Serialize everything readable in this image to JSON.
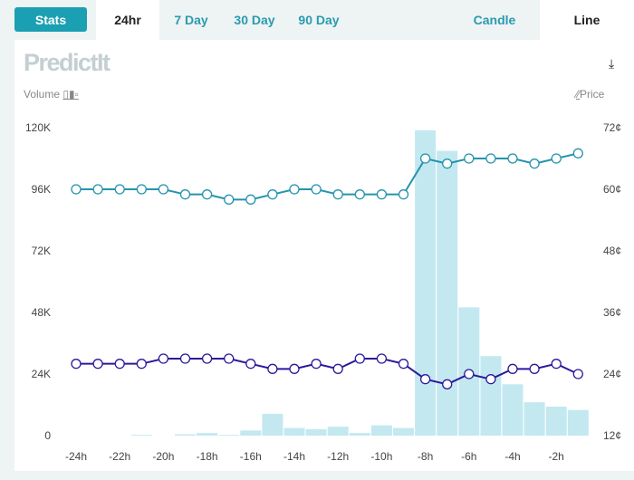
{
  "header": {
    "stats_label": "Stats",
    "tabs": [
      {
        "label": "24hr",
        "active": true
      },
      {
        "label": "7 Day"
      },
      {
        "label": "30 Day"
      },
      {
        "label": "90 Day"
      }
    ],
    "view_tabs": [
      {
        "label": "Candle"
      },
      {
        "label": "Line",
        "active": true
      }
    ]
  },
  "logo": "PredictIt",
  "legend": {
    "volume": "Volume",
    "price": "Price"
  },
  "colors": {
    "accent": "#1b9fb2",
    "series1": "#2593ad",
    "series2": "#2a1a9a",
    "bars": "#c3e8f0"
  },
  "chart_data": {
    "type": "line",
    "x": [
      "-24h",
      "-23h",
      "-22h",
      "-21h",
      "-20h",
      "-19h",
      "-18h",
      "-17h",
      "-16h",
      "-15h",
      "-14h",
      "-13h",
      "-12h",
      "-11h",
      "-10h",
      "-9h",
      "-8h",
      "-7h",
      "-6h",
      "-5h",
      "-4h",
      "-3h",
      "-2h",
      "-1h"
    ],
    "x_tick_labels": [
      "-24h",
      "-22h",
      "-20h",
      "-18h",
      "-16h",
      "-14h",
      "-12h",
      "-10h",
      "-8h",
      "-6h",
      "-4h",
      "-2h"
    ],
    "y_left": {
      "label": "Volume",
      "ticks": [
        "0",
        "24K",
        "48K",
        "72K",
        "96K",
        "120K"
      ],
      "range": [
        0,
        120000
      ]
    },
    "y_right": {
      "label": "Price",
      "ticks": [
        "12¢",
        "24¢",
        "36¢",
        "48¢",
        "60¢",
        "72¢"
      ],
      "range": [
        12,
        72
      ]
    },
    "series": [
      {
        "values": [
          60,
          60,
          60,
          60,
          60,
          59,
          59,
          58,
          58,
          59,
          60,
          60,
          59,
          59,
          59,
          59,
          66,
          65,
          66,
          66,
          66,
          65,
          66,
          67
        ]
      },
      {
        "values": [
          26,
          26,
          26,
          26,
          27,
          27,
          27,
          27,
          26,
          25,
          25,
          26,
          25,
          27,
          27,
          26,
          23,
          22,
          24,
          23,
          25,
          25,
          26,
          24
        ]
      }
    ],
    "volume": [
      0,
      0,
      0,
      300,
      0,
      500,
      1000,
      300,
      2000,
      8500,
      3000,
      2500,
      3500,
      1000,
      4000,
      3000,
      119000,
      111000,
      50000,
      31000,
      20000,
      13000,
      11300,
      10000
    ]
  }
}
